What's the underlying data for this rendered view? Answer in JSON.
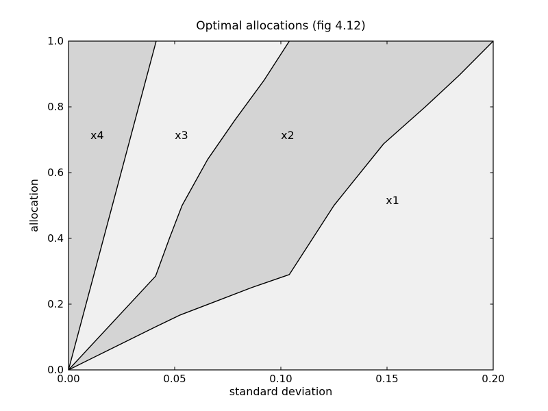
{
  "figure": {
    "background": "#ffffff",
    "frame_color": "#000000"
  },
  "chart_data": {
    "type": "area",
    "title": "Optimal allocations (fig 4.12)",
    "xlabel": "standard deviation",
    "ylabel": "allocation",
    "xlim": [
      0.0,
      0.2
    ],
    "ylim": [
      0.0,
      1.0
    ],
    "grid": false,
    "legend": null,
    "line_color": "#000000",
    "xticks": {
      "values": [
        0.0,
        0.05,
        0.1,
        0.15,
        0.2
      ],
      "labels": [
        "0.00",
        "0.05",
        "0.10",
        "0.15",
        "0.20"
      ]
    },
    "yticks": {
      "values": [
        0.0,
        0.2,
        0.4,
        0.6,
        0.8,
        1.0
      ],
      "labels": [
        "0.0",
        "0.2",
        "0.4",
        "0.6",
        "0.8",
        "1.0"
      ]
    },
    "boundaries": [
      {
        "name": "x4-x3-boundary",
        "points": [
          [
            0.0,
            0.0
          ],
          [
            0.0413,
            1.0
          ]
        ]
      },
      {
        "name": "x3-x2-boundary",
        "points": [
          [
            0.0,
            0.0
          ],
          [
            0.041,
            0.285
          ],
          [
            0.0475,
            0.4
          ],
          [
            0.0535,
            0.5
          ],
          [
            0.0655,
            0.64
          ],
          [
            0.0784,
            0.76
          ],
          [
            0.092,
            0.88
          ],
          [
            0.104,
            1.0
          ]
        ]
      },
      {
        "name": "x2-x1-boundary",
        "points": [
          [
            0.0,
            0.0
          ],
          [
            0.041,
            0.131
          ],
          [
            0.0526,
            0.167
          ],
          [
            0.07,
            0.21
          ],
          [
            0.0861,
            0.25
          ],
          [
            0.104,
            0.29
          ],
          [
            0.125,
            0.5
          ],
          [
            0.1484,
            0.6875
          ],
          [
            0.168,
            0.8
          ],
          [
            0.184,
            0.896
          ],
          [
            0.2,
            1.0
          ]
        ]
      }
    ],
    "regions": [
      {
        "label": "x4",
        "fill": "#d4d4d4",
        "label_x": 0.0135,
        "label_y": 0.712
      },
      {
        "label": "x3",
        "fill": "#f0f0f0",
        "label_x": 0.0532,
        "label_y": 0.712
      },
      {
        "label": "x2",
        "fill": "#d4d4d4",
        "label_x": 0.1032,
        "label_y": 0.712
      },
      {
        "label": "x1",
        "fill": "#f0f0f0",
        "label_x": 0.1526,
        "label_y": 0.515
      }
    ]
  }
}
